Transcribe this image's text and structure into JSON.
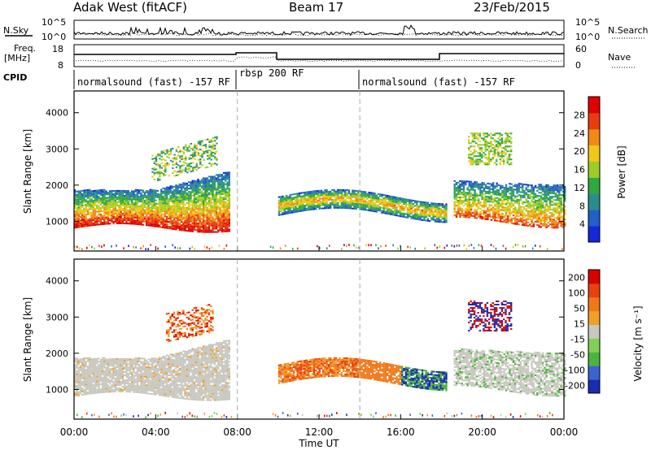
{
  "header": {
    "station": "Adak West (fitACF)",
    "beam": "Beam 17",
    "date": "23/Feb/2015"
  },
  "noise_panel": {
    "left_label": "N.Sky",
    "right_label": "N.Search",
    "left_ticks": [
      "10^5",
      "10^0"
    ],
    "right_ticks": [
      "10^5",
      "10^0"
    ]
  },
  "freq_panel": {
    "left_label_line1": "Freq.",
    "left_label_line2": "[MHz]",
    "right_label": "Nave",
    "left_ticks": [
      "18",
      "8"
    ],
    "right_ticks": [
      "60",
      "0"
    ]
  },
  "cpid_panel": {
    "label": "CPID",
    "segments": [
      {
        "name": "normalsound (fast) -157 RF",
        "start_hour": 0,
        "end_hour": 8
      },
      {
        "name": "rbsp 200 RF",
        "start_hour": 8,
        "end_hour": 14
      },
      {
        "name": "normalsound (fast) -157 RF",
        "start_hour": 14,
        "end_hour": 24
      }
    ]
  },
  "chart_data": [
    {
      "type": "heatmap",
      "name": "power",
      "ylabel": "Slant Range [km]",
      "yticks": [
        "1000",
        "2000",
        "3000",
        "4000"
      ],
      "ylim": [
        180,
        4600
      ],
      "xlim": [
        0,
        24
      ],
      "colorbar": {
        "label": "Power [dB]",
        "ticks": [
          "4",
          "8",
          "12",
          "16",
          "20",
          "24",
          "28"
        ],
        "colors": [
          "#1428d8",
          "#2060c8",
          "#2a8c8c",
          "#30a840",
          "#9ccc28",
          "#f0c818",
          "#f08a14",
          "#e83c10",
          "#e00000"
        ]
      }
    },
    {
      "type": "heatmap",
      "name": "velocity",
      "ylabel": "Slant Range [km]",
      "yticks": [
        "1000",
        "2000",
        "3000",
        "4000"
      ],
      "ylim": [
        180,
        4600
      ],
      "xlim": [
        0,
        24
      ],
      "colorbar": {
        "label": "Velocity [m s⁻¹]",
        "ticks": [
          "200",
          "100",
          "50",
          "15",
          "-15",
          "-50",
          "-100",
          "-200"
        ],
        "colors": [
          "#1a2cb0",
          "#3c64d0",
          "#4cb43c",
          "#80d058",
          "#c8c8c0",
          "#f0a028",
          "#f07818",
          "#e84010",
          "#d80000"
        ]
      }
    }
  ],
  "xaxis": {
    "label": "Time UT",
    "ticks": [
      "00:00",
      "04:00",
      "08:00",
      "12:00",
      "16:00",
      "20:00",
      "00:00"
    ]
  }
}
